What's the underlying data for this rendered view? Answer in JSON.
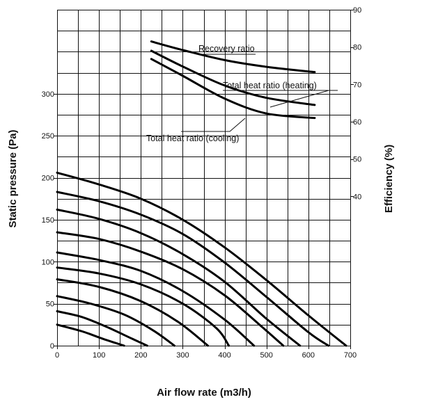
{
  "chart_data": {
    "type": "line",
    "xlabel": "Air flow rate (m3/h)",
    "ylabel_left": "Static pressure (Pa)",
    "ylabel_right": "Efficiency (%)",
    "x_ticks": [
      "0",
      "100",
      "200",
      "300",
      "400",
      "500",
      "600",
      "700"
    ],
    "y_left_ticks": [
      "0",
      "50",
      "100",
      "150",
      "200",
      "250",
      "300"
    ],
    "y_right_ticks": [
      "40",
      "50",
      "60",
      "70",
      "80",
      "90"
    ],
    "xlim": [
      0,
      700
    ],
    "ylim_left": [
      0,
      400
    ],
    "ylim_right": [
      0,
      90
    ],
    "grid": true,
    "pressure_curves": [
      {
        "x": [
          0,
          60,
          110,
          160
        ],
        "y": [
          25,
          17,
          8,
          0
        ]
      },
      {
        "x": [
          0,
          60,
          120,
          180,
          215
        ],
        "y": [
          41,
          34,
          22,
          8,
          0
        ]
      },
      {
        "x": [
          0,
          80,
          160,
          230,
          280
        ],
        "y": [
          59,
          50,
          37,
          18,
          0
        ]
      },
      {
        "x": [
          0,
          100,
          200,
          290,
          360
        ],
        "y": [
          79,
          70,
          53,
          28,
          0
        ]
      },
      {
        "x": [
          0,
          100,
          200,
          300,
          380,
          410
        ],
        "y": [
          93,
          86,
          73,
          50,
          21,
          0
        ]
      },
      {
        "x": [
          0,
          100,
          200,
          300,
          400,
          470
        ],
        "y": [
          111,
          102,
          89,
          65,
          31,
          0
        ]
      },
      {
        "x": [
          0,
          100,
          200,
          300,
          400,
          490,
          540
        ],
        "y": [
          135,
          127,
          112,
          91,
          60,
          22,
          0
        ]
      },
      {
        "x": [
          0,
          100,
          200,
          300,
          400,
          500,
          580
        ],
        "y": [
          162,
          151,
          134,
          109,
          76,
          32,
          0
        ]
      },
      {
        "x": [
          0,
          100,
          200,
          300,
          400,
          500,
          600,
          648
        ],
        "y": [
          183,
          172,
          156,
          133,
          99,
          58,
          16,
          0
        ]
      },
      {
        "x": [
          0,
          100,
          200,
          300,
          400,
          500,
          600,
          690
        ],
        "y": [
          206,
          192,
          175,
          150,
          117,
          78,
          36,
          0
        ]
      }
    ],
    "efficiency_curves": [
      {
        "name": "Recovery ratio",
        "x": [
          225,
          300,
          400,
          500,
          615
        ],
        "y": [
          81.5,
          79.2,
          76.5,
          74.7,
          73.3
        ]
      },
      {
        "name": "Total heat ratio (heating)",
        "x": [
          225,
          300,
          400,
          500,
          615
        ],
        "y": [
          79.0,
          74.8,
          69.7,
          66.4,
          64.5
        ]
      },
      {
        "name": "Total heat ratio (cooling)",
        "x": [
          225,
          300,
          400,
          500,
          615
        ],
        "y": [
          76.8,
          72.3,
          66.2,
          62.2,
          61.0
        ]
      }
    ],
    "annotations": [
      "Recovery ratio",
      "Total heat ratio (heating)",
      "Total heat ratio (cooling)"
    ]
  }
}
